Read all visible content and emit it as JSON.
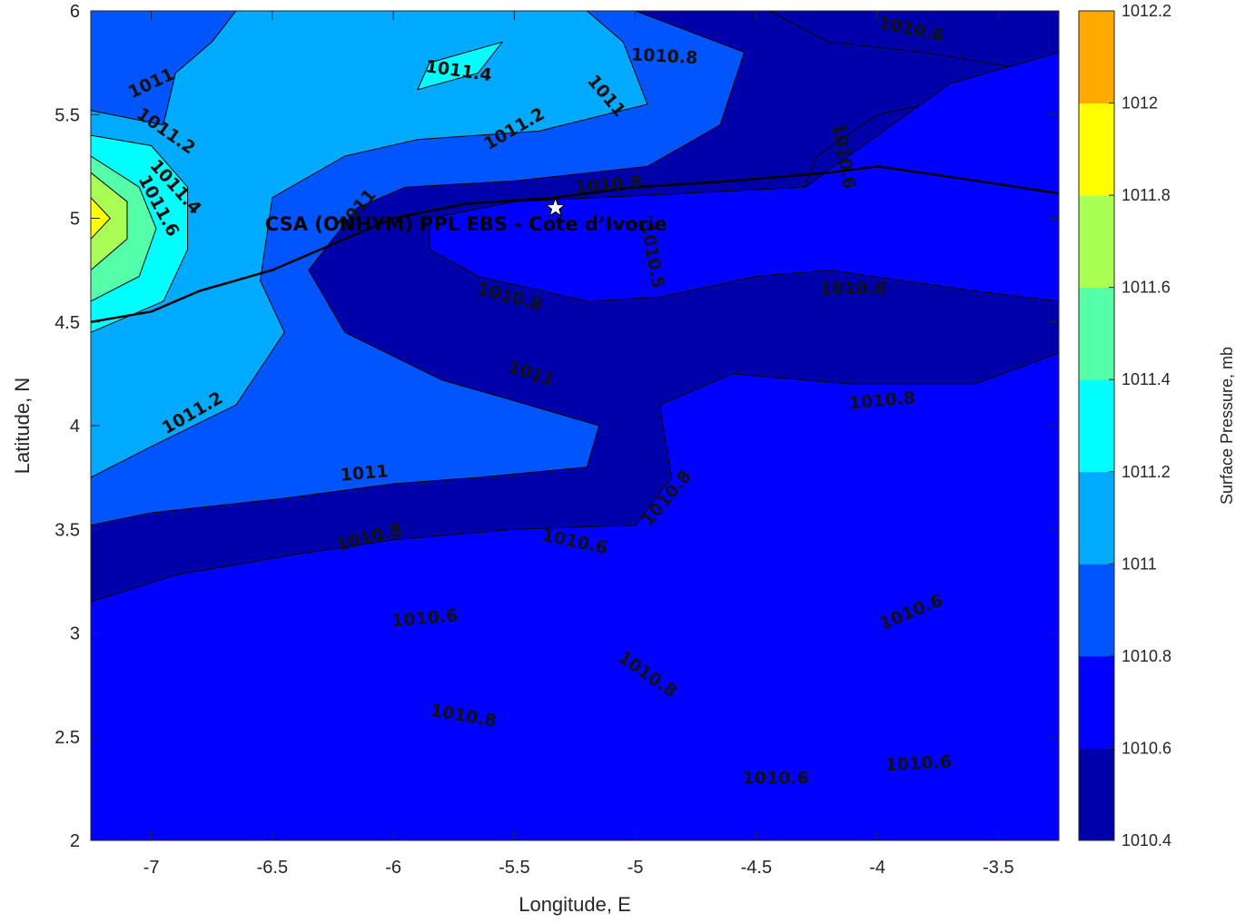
{
  "chart_data": {
    "type": "contour",
    "site_label": "CSA (ONHYM) PPL EBS  - Cote d’Ivorie",
    "site_location": {
      "lon": -5.33,
      "lat": 5.05
    },
    "xlabel": "Longitude, E",
    "ylabel": "Latitude, N",
    "xlim": [
      -7.25,
      -3.25
    ],
    "ylim": [
      2,
      6
    ],
    "xticks": [
      -7,
      -6.5,
      -6,
      -5.5,
      -5,
      -4.5,
      -4,
      -3.5
    ],
    "yticks": [
      2,
      2.5,
      3,
      3.5,
      4,
      4.5,
      5,
      5.5,
      6
    ],
    "colorbar": {
      "label": "Surface Pressure, mb",
      "levels": [
        1010.4,
        1010.6,
        1010.8,
        1011,
        1011.2,
        1011.4,
        1011.6,
        1011.8,
        1012,
        1012.2
      ],
      "tick_labels": [
        "1010.4",
        "1010.6",
        "1010.8",
        "1011",
        "1011.2",
        "1011.4",
        "1011.6",
        "1011.8",
        "1012",
        "1012.2"
      ],
      "colors": [
        "#0000aa",
        "#0000ff",
        "#0055ff",
        "#00aaff",
        "#00ffff",
        "#55ffaa",
        "#aaff55",
        "#ffff00",
        "#ffaa00",
        "#ff5500"
      ]
    },
    "regions": [
      {
        "level": 1010.4,
        "points": [
          [
            -4.45,
            6
          ],
          [
            -3.25,
            6
          ],
          [
            -3.25,
            5.1
          ],
          [
            -3.7,
            5.1
          ],
          [
            -4.3,
            5.15
          ],
          [
            -4.25,
            5.3
          ],
          [
            -4.0,
            5.5
          ],
          [
            -3.8,
            5.55
          ],
          [
            -3.4,
            5.55
          ],
          [
            -3.3,
            5.7
          ],
          [
            -3.8,
            5.8
          ],
          [
            -4.2,
            5.85
          ]
        ]
      },
      {
        "level": 1010.4,
        "points": [
          [
            -3.9,
            3.75
          ],
          [
            -3.7,
            3.85
          ],
          [
            -3.4,
            3.75
          ],
          [
            -3.25,
            3.6
          ],
          [
            -3.25,
            2
          ],
          [
            -4.2,
            2
          ],
          [
            -4.15,
            2.4
          ],
          [
            -4.1,
            2.8
          ],
          [
            -4.2,
            3.0
          ],
          [
            -4.2,
            3.08
          ],
          [
            -3.95,
            3.25
          ],
          [
            -3.8,
            3.35
          ],
          [
            -3.85,
            3.6
          ],
          [
            -4.0,
            3.75
          ]
        ]
      },
      {
        "level": 1010.4,
        "points": [
          [
            -6.3,
            3.25
          ],
          [
            -6.0,
            3.32
          ],
          [
            -5.6,
            3.45
          ],
          [
            -5.3,
            3.48
          ],
          [
            -5.0,
            3.35
          ],
          [
            -4.85,
            3.2
          ],
          [
            -5.1,
            3.08
          ],
          [
            -5.6,
            3.05
          ],
          [
            -6.0,
            3.0
          ],
          [
            -6.3,
            3.1
          ]
        ]
      },
      {
        "level": 1010.4,
        "points": [
          [
            -4.75,
            2.28
          ],
          [
            -4.4,
            2.35
          ],
          [
            -4.3,
            2.2
          ],
          [
            -4.25,
            2.0
          ],
          [
            -4.6,
            2.0
          ],
          [
            -4.75,
            2.15
          ]
        ]
      },
      {
        "level": 1010.4,
        "points": [
          [
            -5.1,
            4.8
          ],
          [
            -4.95,
            4.82
          ],
          [
            -4.95,
            4.75
          ],
          [
            -5.1,
            4.75
          ]
        ]
      },
      {
        "level": 1010.6,
        "points": [
          [
            -7.25,
            3.15
          ],
          [
            -6.9,
            3.28
          ],
          [
            -6.4,
            3.38
          ],
          [
            -6.0,
            3.45
          ],
          [
            -5.5,
            3.5
          ],
          [
            -5.0,
            3.52
          ],
          [
            -4.85,
            3.75
          ],
          [
            -4.9,
            4.1
          ],
          [
            -4.6,
            4.25
          ],
          [
            -4.1,
            4.2
          ],
          [
            -3.6,
            4.2
          ],
          [
            -3.25,
            4.35
          ],
          [
            -3.25,
            2
          ],
          [
            -7.25,
            2
          ]
        ]
      },
      {
        "level": 1010.6,
        "points": [
          [
            -5.85,
            5.0
          ],
          [
            -5.5,
            5.08
          ],
          [
            -4.8,
            5.12
          ],
          [
            -4.3,
            5.15
          ],
          [
            -4.0,
            5.4
          ],
          [
            -3.7,
            5.65
          ],
          [
            -3.25,
            5.8
          ],
          [
            -3.25,
            4.6
          ],
          [
            -3.6,
            4.65
          ],
          [
            -4.2,
            4.75
          ],
          [
            -4.5,
            4.72
          ],
          [
            -4.9,
            4.62
          ],
          [
            -5.2,
            4.6
          ],
          [
            -5.65,
            4.72
          ],
          [
            -5.85,
            4.85
          ]
        ]
      },
      {
        "level": 1010.8,
        "points": [
          [
            -5.0,
            6
          ],
          [
            -4.55,
            5.8
          ],
          [
            -4.65,
            5.45
          ],
          [
            -4.95,
            5.25
          ],
          [
            -5.5,
            5.18
          ],
          [
            -5.95,
            5.15
          ],
          [
            -6.15,
            5.05
          ],
          [
            -6.35,
            4.75
          ],
          [
            -6.2,
            4.45
          ],
          [
            -5.8,
            4.22
          ],
          [
            -5.5,
            4.12
          ],
          [
            -5.15,
            4.0
          ],
          [
            -5.2,
            3.8
          ],
          [
            -5.65,
            3.75
          ],
          [
            -6.0,
            3.72
          ],
          [
            -6.45,
            3.65
          ],
          [
            -7.0,
            3.58
          ],
          [
            -7.25,
            3.52
          ],
          [
            -7.25,
            6
          ]
        ]
      },
      {
        "level": 1011,
        "points": [
          [
            -6.65,
            6
          ],
          [
            -5.2,
            6
          ],
          [
            -5.05,
            5.85
          ],
          [
            -4.95,
            5.55
          ],
          [
            -5.4,
            5.42
          ],
          [
            -5.9,
            5.38
          ],
          [
            -6.2,
            5.3
          ],
          [
            -6.5,
            5.1
          ],
          [
            -6.55,
            4.7
          ],
          [
            -6.45,
            4.45
          ],
          [
            -6.65,
            4.1
          ],
          [
            -7.0,
            3.9
          ],
          [
            -7.25,
            3.75
          ],
          [
            -7.25,
            5.52
          ],
          [
            -6.95,
            5.45
          ],
          [
            -6.9,
            5.7
          ],
          [
            -6.75,
            5.85
          ]
        ]
      },
      {
        "level": 1011.2,
        "points": [
          [
            -7.25,
            5.4
          ],
          [
            -7.0,
            5.35
          ],
          [
            -6.85,
            5.15
          ],
          [
            -6.85,
            4.85
          ],
          [
            -6.95,
            4.6
          ],
          [
            -7.25,
            4.45
          ]
        ]
      },
      {
        "level": 1011.2,
        "points": [
          [
            -5.9,
            5.62
          ],
          [
            -5.65,
            5.7
          ],
          [
            -5.55,
            5.85
          ],
          [
            -5.7,
            5.8
          ],
          [
            -5.85,
            5.75
          ]
        ]
      },
      {
        "level": 1011.4,
        "points": [
          [
            -7.25,
            5.3
          ],
          [
            -7.05,
            5.15
          ],
          [
            -6.98,
            4.95
          ],
          [
            -7.05,
            4.72
          ],
          [
            -7.25,
            4.6
          ]
        ]
      },
      {
        "level": 1011.6,
        "points": [
          [
            -7.25,
            5.22
          ],
          [
            -7.1,
            5.08
          ],
          [
            -7.1,
            4.9
          ],
          [
            -7.25,
            4.75
          ]
        ]
      },
      {
        "level": 1011.8,
        "points": [
          [
            -7.25,
            5.1
          ],
          [
            -7.17,
            5.0
          ],
          [
            -7.25,
            4.9
          ]
        ]
      }
    ],
    "coastline": [
      [
        -7.25,
        4.5
      ],
      [
        -7.0,
        4.55
      ],
      [
        -6.8,
        4.65
      ],
      [
        -6.5,
        4.75
      ],
      [
        -6.2,
        4.9
      ],
      [
        -6.0,
        5.0
      ],
      [
        -5.7,
        5.07
      ],
      [
        -5.33,
        5.1
      ],
      [
        -5.0,
        5.15
      ],
      [
        -4.6,
        5.18
      ],
      [
        -4.2,
        5.22
      ],
      [
        -4.0,
        5.25
      ],
      [
        -3.7,
        5.2
      ],
      [
        -3.25,
        5.12
      ]
    ],
    "contour_labels": [
      {
        "text": "1011",
        "lon": -7.0,
        "lat": 5.65,
        "angle": -25
      },
      {
        "text": "1011.4",
        "lon": -5.73,
        "lat": 5.71,
        "angle": 8
      },
      {
        "text": "1010.8",
        "lon": -4.88,
        "lat": 5.78,
        "angle": 3
      },
      {
        "text": "1010.6",
        "lon": -3.86,
        "lat": 5.91,
        "angle": 12
      },
      {
        "text": "1011.2",
        "lon": -6.94,
        "lat": 5.42,
        "angle": 35
      },
      {
        "text": "1011.2",
        "lon": -5.5,
        "lat": 5.43,
        "angle": -30
      },
      {
        "text": "1011",
        "lon": -5.12,
        "lat": 5.59,
        "angle": 50
      },
      {
        "text": "1010.6",
        "lon": -4.14,
        "lat": 5.3,
        "angle": 80
      },
      {
        "text": "1011.4",
        "lon": -6.9,
        "lat": 5.15,
        "angle": 48
      },
      {
        "text": "1011.6",
        "lon": -6.97,
        "lat": 5.06,
        "angle": 62
      },
      {
        "text": "1011",
        "lon": -6.15,
        "lat": 5.04,
        "angle": -50
      },
      {
        "text": "1010.8",
        "lon": -5.11,
        "lat": 5.16,
        "angle": -5
      },
      {
        "text": "1010.5",
        "lon": -4.93,
        "lat": 4.82,
        "angle": 80
      },
      {
        "text": "1010.8",
        "lon": -4.1,
        "lat": 4.66,
        "angle": 0
      },
      {
        "text": "1010.8",
        "lon": -5.52,
        "lat": 4.62,
        "angle": 15
      },
      {
        "text": "1011",
        "lon": -5.43,
        "lat": 4.25,
        "angle": 18
      },
      {
        "text": "1010.8",
        "lon": -3.98,
        "lat": 4.12,
        "angle": -5
      },
      {
        "text": "1011.2",
        "lon": -6.83,
        "lat": 4.06,
        "angle": -30
      },
      {
        "text": "1011",
        "lon": -6.12,
        "lat": 3.77,
        "angle": -5
      },
      {
        "text": "1010.8",
        "lon": -4.87,
        "lat": 3.65,
        "angle": -50
      },
      {
        "text": "1010.8",
        "lon": -6.1,
        "lat": 3.46,
        "angle": -15
      },
      {
        "text": "1010.6",
        "lon": -5.25,
        "lat": 3.44,
        "angle": 12
      },
      {
        "text": "1010.6",
        "lon": -5.87,
        "lat": 3.07,
        "angle": -5
      },
      {
        "text": "1010.6",
        "lon": -3.86,
        "lat": 3.1,
        "angle": -22
      },
      {
        "text": "1010.8",
        "lon": -4.95,
        "lat": 2.8,
        "angle": 35
      },
      {
        "text": "1010.8",
        "lon": -5.71,
        "lat": 2.6,
        "angle": 10
      },
      {
        "text": "1010.6",
        "lon": -4.42,
        "lat": 2.3,
        "angle": 0
      },
      {
        "text": "1010.6",
        "lon": -3.83,
        "lat": 2.37,
        "angle": -3
      }
    ]
  }
}
